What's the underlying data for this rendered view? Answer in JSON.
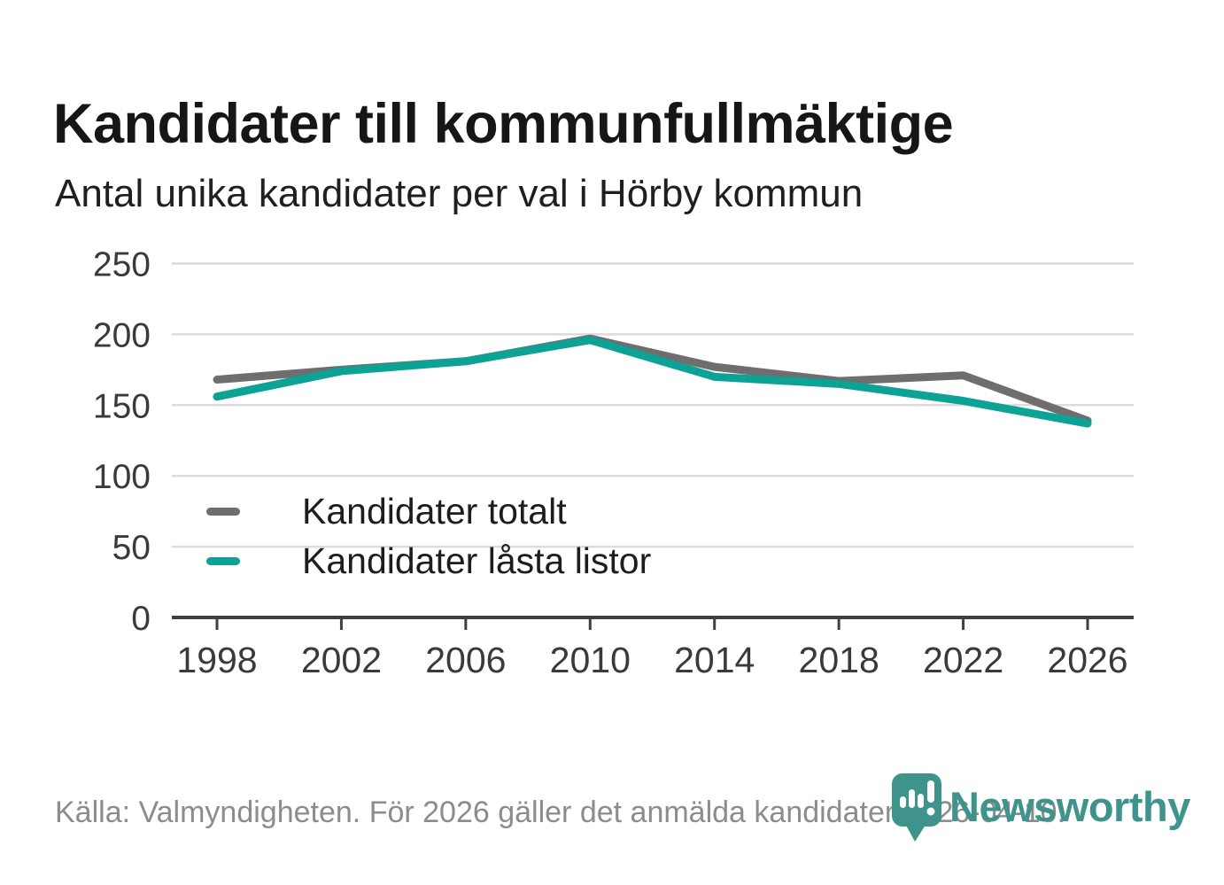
{
  "header": {
    "title": "Kandidater till kommunfullmäktige",
    "subtitle": "Antal unika kandidater per val i Hörby kommun"
  },
  "footer": {
    "source_note": "Källa: Valmyndigheten. För 2026 gäller det anmälda kandidater 2026-04-10."
  },
  "brand": {
    "name": "Newsworthy",
    "icon": "newsworthy-pin-barchart-icon",
    "color": "#3e948c"
  },
  "chart_data": {
    "type": "line",
    "title": "Kandidater till kommunfullmäktige",
    "subtitle": "Antal unika kandidater per val i Hörby kommun",
    "x": [
      "1998",
      "2002",
      "2006",
      "2010",
      "2014",
      "2018",
      "2022",
      "2026"
    ],
    "series": [
      {
        "name": "Kandidater totalt",
        "color": "#6e6e6e",
        "values": [
          168,
          175,
          181,
          197,
          177,
          167,
          171,
          139
        ]
      },
      {
        "name": "Kandidater låsta listor",
        "color": "#0ca295",
        "values": [
          156,
          174,
          181,
          196,
          170,
          165,
          153,
          137
        ]
      }
    ],
    "ylim": [
      0,
      250
    ],
    "yticks": [
      0,
      50,
      100,
      150,
      200,
      250
    ],
    "grid": "horizontal-light",
    "legend_position": "inside-bottom-left",
    "colors": {
      "gridline": "#dcdcdc",
      "axis": "#3f3f3f",
      "tick_label": "#3a3a3a"
    }
  }
}
